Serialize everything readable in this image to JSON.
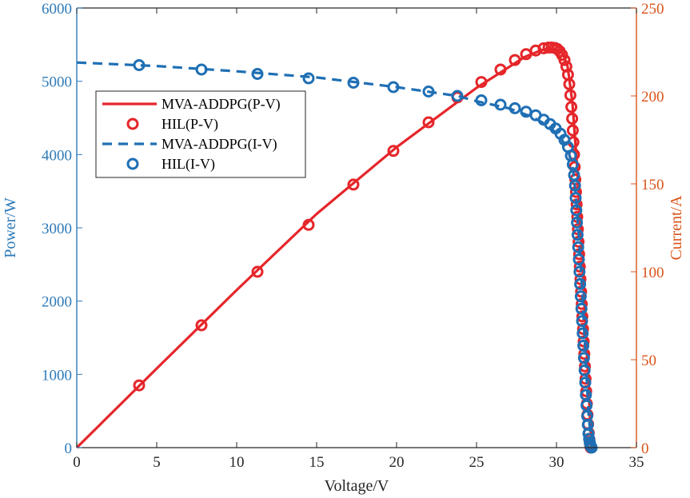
{
  "chart_data": {
    "type": "line",
    "dual_axis": true,
    "grid": false,
    "legend_placement": "upper-left",
    "xlabel": "Voltage/V",
    "ylabel_left": "Power/W",
    "ylabel_right": "Current/A",
    "xlim": [
      0,
      35
    ],
    "ylim_left": [
      0,
      6000
    ],
    "ylim_right": [
      0,
      250
    ],
    "x_ticks": [
      "0",
      "5",
      "10",
      "15",
      "20",
      "25",
      "30",
      "35"
    ],
    "y_left_ticks": [
      "0",
      "1000",
      "2000",
      "3000",
      "4000",
      "5000",
      "6000"
    ],
    "y_right_ticks": [
      "0",
      "50",
      "100",
      "150",
      "200",
      "250"
    ],
    "colors": {
      "left_axis": "#2e7ab8",
      "right_axis": "#d9541a",
      "pv": "#e5262a",
      "iv": "#1f6fb4"
    },
    "series": [
      {
        "name": "MVA-ADDPG(P-V)",
        "axis": "left",
        "style": "solid-line",
        "color": "#e5262a",
        "x": [
          0,
          5,
          10,
          15,
          20,
          25,
          28,
          29,
          29.5,
          30,
          30.4,
          30.7,
          31.0,
          31.3,
          31.6,
          31.9,
          32.1,
          32.2
        ],
        "y": [
          0,
          1080,
          2150,
          3190,
          4100,
          4910,
          5330,
          5420,
          5450,
          5440,
          5380,
          5200,
          4700,
          3800,
          2600,
          1300,
          400,
          0
        ]
      },
      {
        "name": "HIL(P-V)",
        "axis": "left",
        "style": "circle-markers",
        "color": "#e5262a",
        "x": [
          3.9,
          7.8,
          11.3,
          14.5,
          17.3,
          19.8,
          22.0,
          23.8,
          25.3,
          26.5,
          27.4,
          28.1,
          28.7,
          29.2,
          29.5,
          29.7,
          29.9,
          30.05,
          30.2,
          30.35,
          30.5,
          30.62,
          30.72,
          30.8,
          30.87,
          30.93,
          30.98,
          31.02,
          31.06,
          31.1,
          31.14,
          31.18,
          31.22,
          31.26,
          31.3,
          31.34,
          31.38,
          31.42,
          31.46,
          31.5,
          31.54,
          31.58,
          31.62,
          31.66,
          31.7,
          31.74,
          31.78,
          31.82,
          31.86,
          31.9,
          31.94,
          31.98,
          32.02,
          32.06,
          32.1,
          32.14
        ],
        "y": [
          850,
          1670,
          2400,
          3040,
          3590,
          4050,
          4440,
          4780,
          4990,
          5160,
          5290,
          5370,
          5420,
          5450,
          5460,
          5460,
          5455,
          5440,
          5410,
          5360,
          5290,
          5200,
          5090,
          4960,
          4810,
          4650,
          4490,
          4330,
          4170,
          4000,
          3830,
          3660,
          3490,
          3320,
          3150,
          2980,
          2810,
          2640,
          2470,
          2300,
          2130,
          1960,
          1790,
          1620,
          1450,
          1280,
          1110,
          940,
          770,
          600,
          450,
          320,
          200,
          110,
          40,
          0
        ]
      },
      {
        "name": "MVA-ADDPG(I-V)",
        "axis": "right",
        "style": "dashed-line",
        "color": "#1f6fb4",
        "x": [
          0,
          5,
          10,
          15,
          20,
          23.8,
          25,
          27,
          28.5,
          29.5,
          30.2,
          30.7,
          31.0,
          31.2,
          31.4,
          31.6,
          31.8,
          32.0,
          32.2
        ],
        "y": [
          219,
          217,
          214,
          210.5,
          205,
          200,
          197,
          193,
          188,
          183,
          177,
          170,
          160,
          145,
          120,
          90,
          55,
          20,
          0
        ]
      },
      {
        "name": "HIL(I-V)",
        "axis": "right",
        "style": "circle-markers",
        "color": "#1f6fb4",
        "x": [
          3.9,
          7.8,
          11.3,
          14.5,
          17.3,
          19.8,
          22.0,
          23.8,
          25.3,
          26.5,
          27.4,
          28.1,
          28.7,
          29.2,
          29.6,
          29.95,
          30.25,
          30.5,
          30.72,
          30.9,
          31.02,
          31.1,
          31.16,
          31.2,
          31.24,
          31.28,
          31.32,
          31.36,
          31.4,
          31.44,
          31.48,
          31.52,
          31.56,
          31.6,
          31.64,
          31.68,
          31.72,
          31.76,
          31.8,
          31.84,
          31.88,
          31.92,
          31.96,
          32.0,
          32.04,
          32.08,
          32.12,
          32.16,
          32.2
        ],
        "y": [
          217.5,
          215,
          212.5,
          210,
          207.5,
          205,
          202.5,
          200,
          197.5,
          195,
          193,
          191,
          189,
          186.5,
          184,
          181.5,
          178.5,
          175,
          171,
          166,
          161,
          155,
          149,
          142,
          135,
          128,
          121,
          114,
          107,
          100,
          93,
          86,
          79,
          72,
          65,
          58,
          51,
          44,
          37,
          30,
          24,
          18,
          13,
          8,
          5,
          3,
          1.5,
          0.5,
          0
        ]
      }
    ]
  }
}
